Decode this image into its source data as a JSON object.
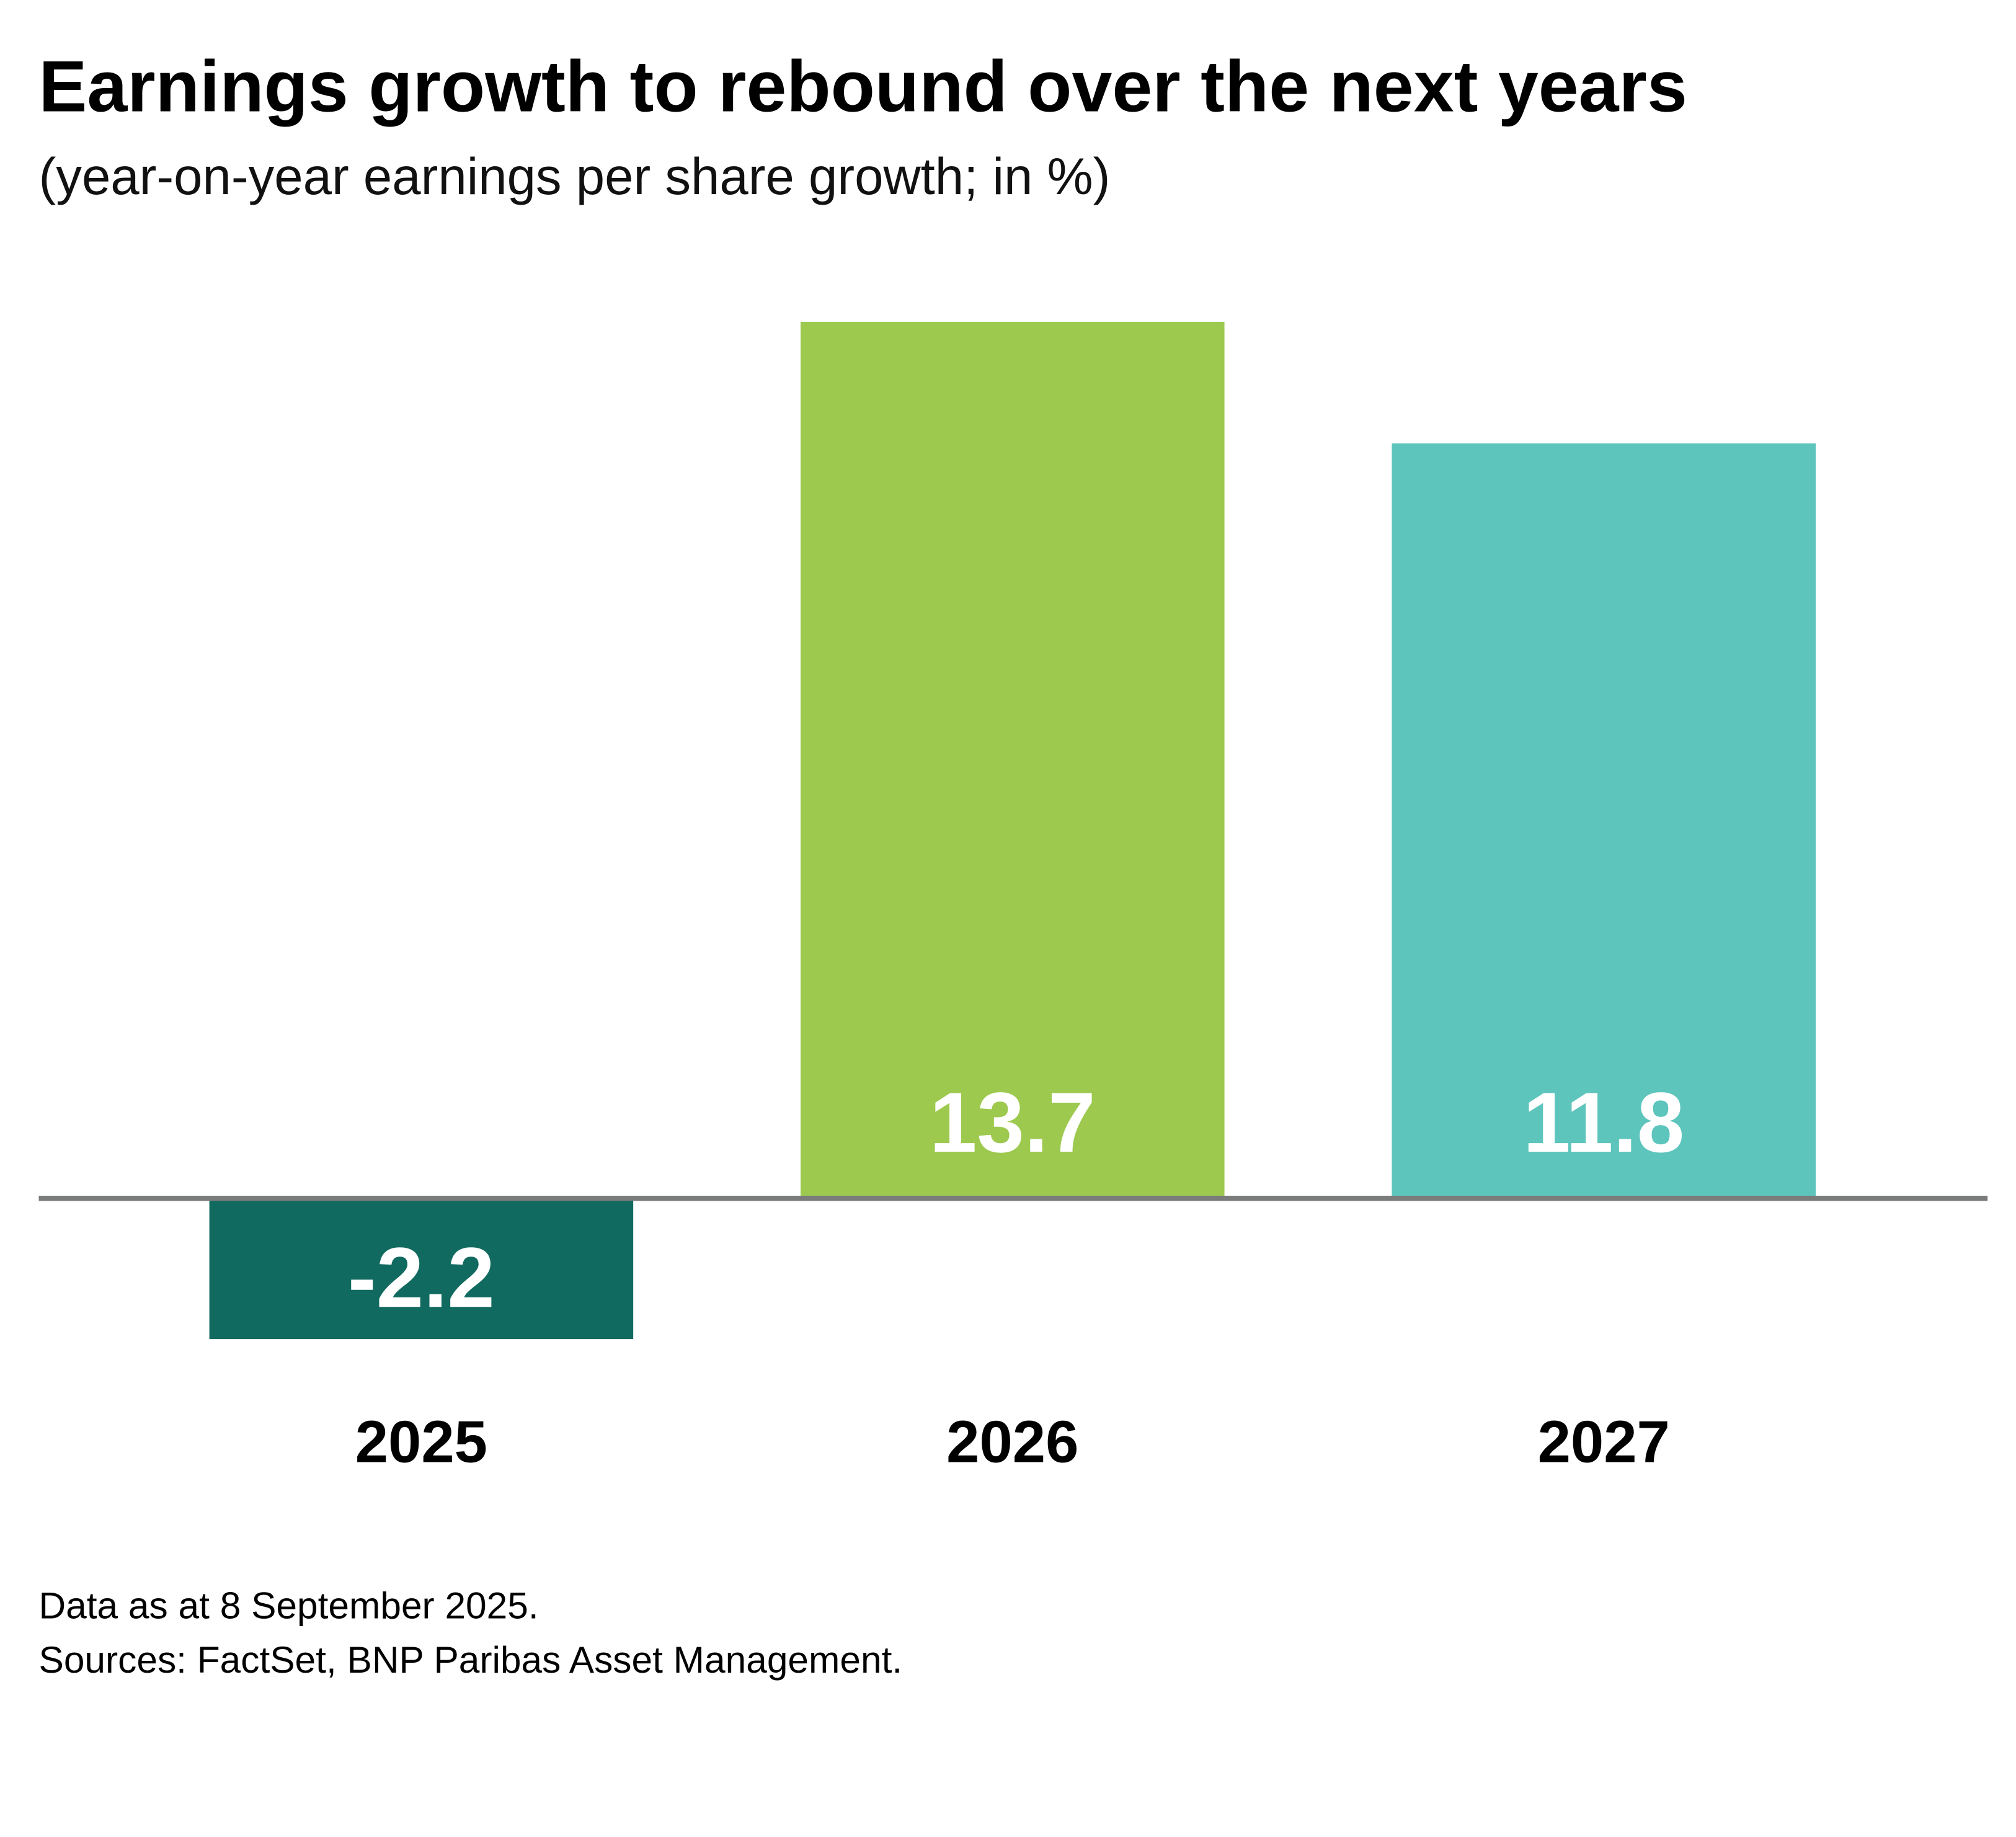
{
  "chart_data": {
    "type": "bar",
    "title": "Earnings growth to rebound over the next years",
    "subtitle": "(year-on-year earnings per share growth; in %)",
    "categories": [
      "2025",
      "2026",
      "2027"
    ],
    "values": [
      -2.2,
      13.7,
      11.8
    ],
    "value_labels": [
      "-2.2",
      "13.7",
      "11.8"
    ],
    "colors": [
      "#116a5f",
      "#9dc94f",
      "#5dc5bc"
    ],
    "axis_color": "#7a7c7c",
    "xlabel": "",
    "ylabel": "",
    "ylim": [
      -2.2,
      13.7
    ],
    "grid": false
  },
  "footnotes": [
    "Data as at 8 September 2025.",
    "Sources: FactSet, BNP Paribas Asset Management."
  ]
}
